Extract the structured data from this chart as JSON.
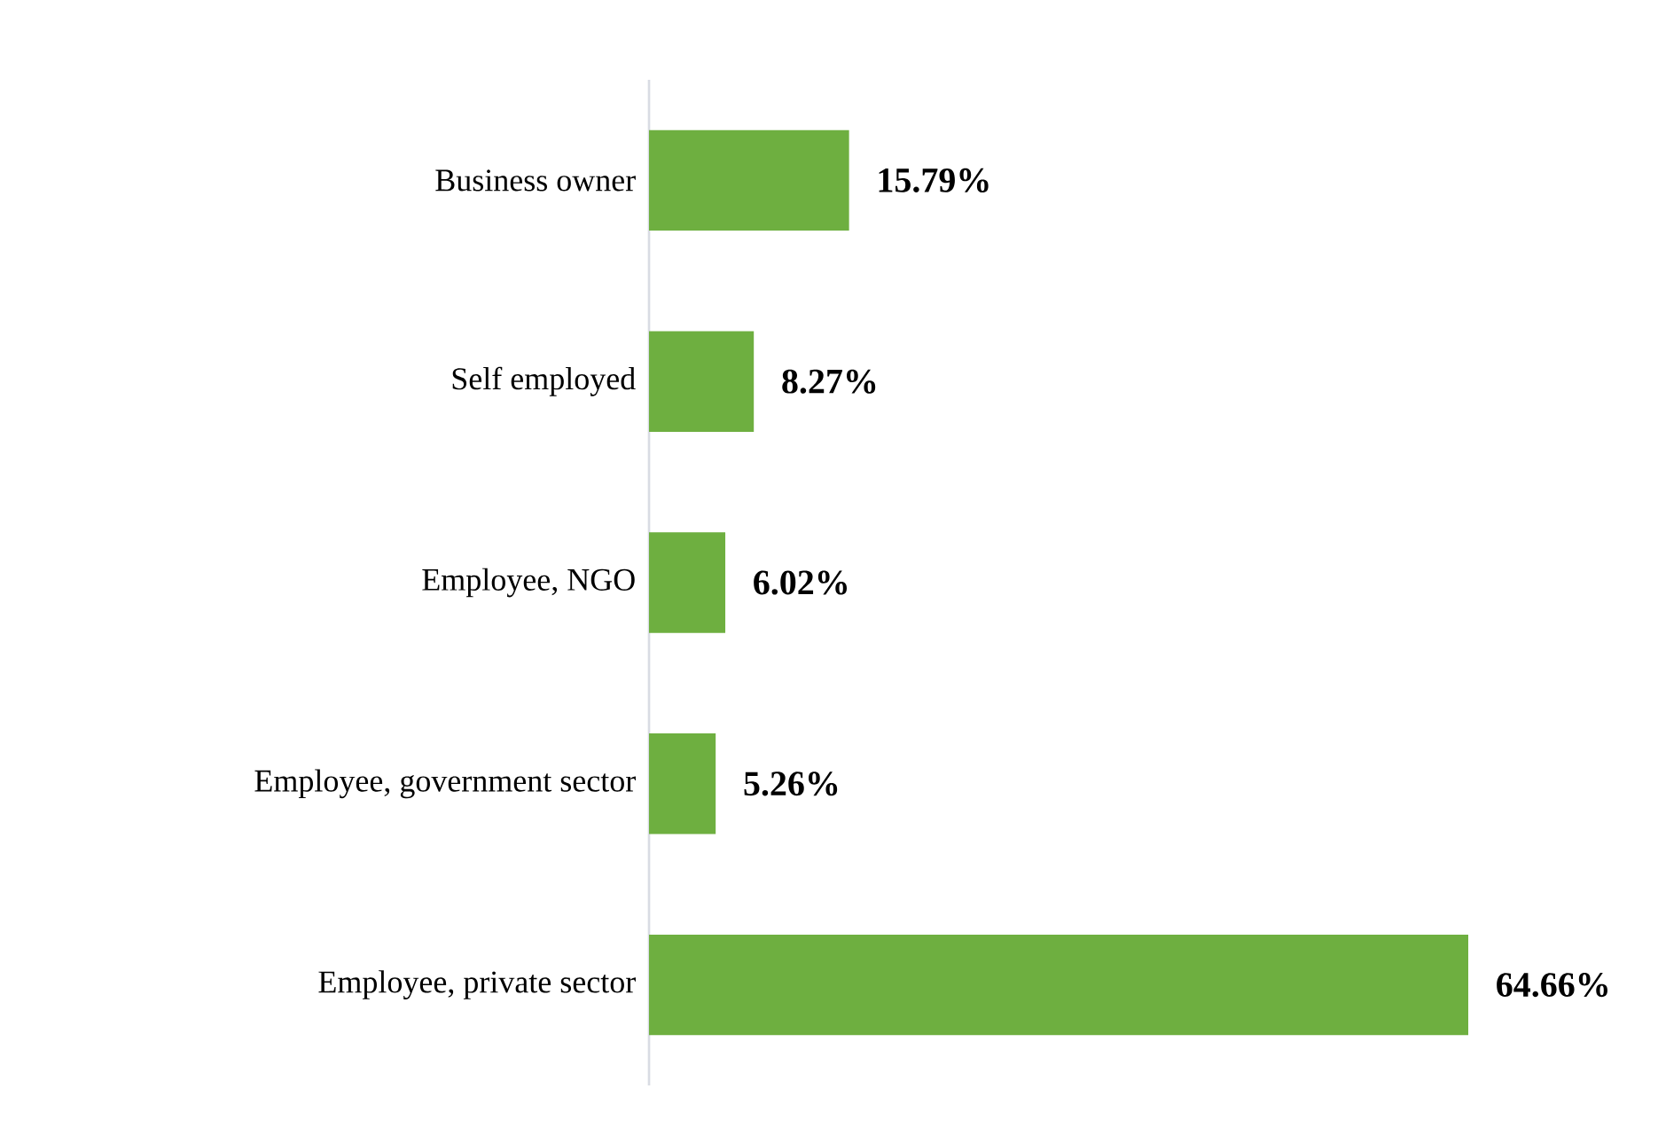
{
  "chart_data": {
    "type": "bar",
    "orientation": "horizontal",
    "categories": [
      "Business owner",
      "Self employed",
      "Employee, NGO",
      "Employee, government sector",
      "Employee, private sector"
    ],
    "values": [
      15.79,
      8.27,
      6.02,
      5.26,
      64.66
    ],
    "value_labels": [
      "15.79%",
      "8.27%",
      "6.02%",
      "5.26%",
      "64.66%"
    ],
    "color": "#6eaf40"
  }
}
